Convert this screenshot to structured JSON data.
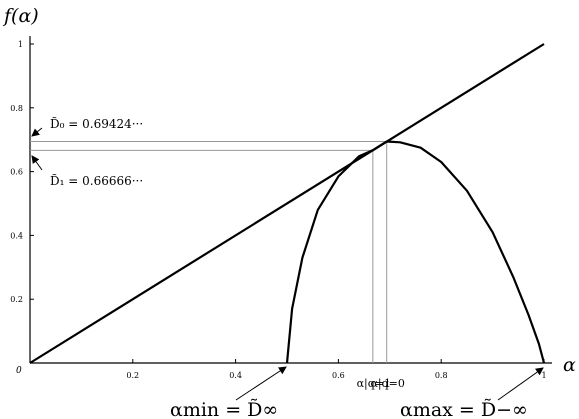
{
  "chart_data": {
    "type": "line",
    "xlabel": "α",
    "ylabel": "f(α)",
    "xlim": [
      0,
      1
    ],
    "ylim": [
      0,
      1
    ],
    "x_ticks": [
      {
        "value": 0.2,
        "label": "0.2"
      },
      {
        "value": 0.4,
        "label": "0.4"
      },
      {
        "value": 0.6,
        "label": "0.6"
      },
      {
        "value": 0.8,
        "label": "0.8"
      },
      {
        "value": 1,
        "label": "1"
      }
    ],
    "y_ticks": [
      {
        "value": 0.2,
        "label": "0.2"
      },
      {
        "value": 0.4,
        "label": "0.4"
      },
      {
        "value": 0.6,
        "label": "0.6"
      },
      {
        "value": 0.8,
        "label": "0.8"
      },
      {
        "value": 1,
        "label": "1"
      }
    ],
    "origin_label": "0",
    "series": [
      {
        "id": "diagonal",
        "x": [
          0,
          1
        ],
        "y": [
          0,
          1
        ]
      },
      {
        "id": "spectrum",
        "x": [
          0.5,
          0.51,
          0.53,
          0.56,
          0.6,
          0.64,
          0.667,
          0.694,
          0.72,
          0.76,
          0.8,
          0.85,
          0.9,
          0.94,
          0.97,
          0.99,
          1.0
        ],
        "y": [
          0,
          0.17,
          0.33,
          0.48,
          0.585,
          0.648,
          0.6667,
          0.69424,
          0.692,
          0.675,
          0.63,
          0.54,
          0.41,
          0.27,
          0.15,
          0.06,
          0
        ]
      }
    ],
    "reference_lines": {
      "horizontal": [
        {
          "y": 0.69424,
          "x_end": 0.694
        },
        {
          "y": 0.6667,
          "x_end": 0.667
        }
      ],
      "vertical": [
        {
          "x": 0.667,
          "y_end": 0.6667,
          "label": "α|q=1"
        },
        {
          "x": 0.694,
          "y_end": 0.69424,
          "label": "α|q=0"
        }
      ]
    },
    "annotations": {
      "d0": "D̃₀ = 0.69424···",
      "d1": "D̃₁ = 0.66666···",
      "amin": "αmin = D̃∞",
      "amax": "αmax = D̃−∞"
    }
  }
}
